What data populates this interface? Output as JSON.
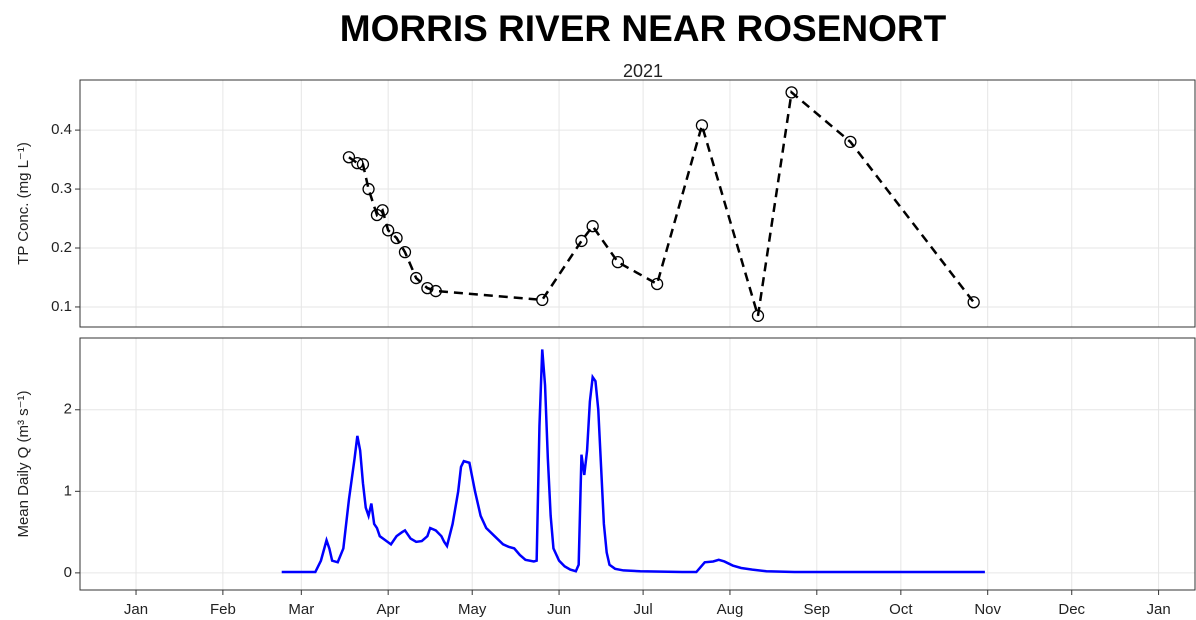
{
  "chart_data": [
    {
      "type": "line",
      "title": "MORRIS RIVER NEAR ROSENORT",
      "subtitle": "2021",
      "y_label": "TP Conc. (mg L⁻¹)",
      "color": "#000000",
      "line_style": "dashed",
      "marker": "open-circle",
      "x": [
        76,
        79,
        81,
        83,
        86,
        88,
        90,
        93,
        96,
        100,
        104,
        107,
        145,
        159,
        163,
        172,
        186,
        202,
        222,
        234,
        255,
        299
      ],
      "values": [
        0.354,
        0.344,
        0.342,
        0.3,
        0.256,
        0.264,
        0.23,
        0.217,
        0.193,
        0.149,
        0.132,
        0.127,
        0.112,
        0.212,
        0.237,
        0.176,
        0.139,
        0.408,
        0.085,
        0.464,
        0.38,
        0.108
      ],
      "ylim": [
        0.066,
        0.485
      ],
      "yticks": [
        0.1,
        0.2,
        0.3,
        0.4
      ],
      "grid": true
    },
    {
      "type": "line",
      "y_label": "Mean Daily Q (m³ s⁻¹)",
      "color": "#0000ff",
      "line_style": "solid",
      "x": [
        52,
        64,
        66,
        68,
        69,
        70,
        72,
        74,
        76,
        78,
        79,
        80,
        81,
        82,
        83,
        84,
        85,
        86,
        87,
        89,
        91,
        93,
        95,
        96,
        98,
        100,
        102,
        104,
        105,
        107,
        109,
        110,
        111,
        113,
        115,
        116,
        117,
        119,
        121,
        123,
        125,
        128,
        131,
        133,
        135,
        137,
        139,
        142,
        143,
        144,
        145,
        146,
        147,
        148,
        149,
        151,
        153,
        155,
        157,
        158,
        159,
        160,
        161,
        162,
        163,
        164,
        165,
        166,
        167,
        168,
        169,
        171,
        174,
        180,
        195,
        200,
        201,
        203,
        206,
        208,
        210,
        213,
        216,
        220,
        225,
        235,
        303
      ],
      "values": [
        0.01,
        0.01,
        0.15,
        0.4,
        0.3,
        0.15,
        0.13,
        0.3,
        0.9,
        1.4,
        1.68,
        1.5,
        1.1,
        0.8,
        0.7,
        0.85,
        0.6,
        0.55,
        0.45,
        0.4,
        0.35,
        0.45,
        0.5,
        0.52,
        0.42,
        0.38,
        0.39,
        0.45,
        0.55,
        0.52,
        0.45,
        0.38,
        0.33,
        0.6,
        1.0,
        1.3,
        1.37,
        1.35,
        1.0,
        0.7,
        0.55,
        0.45,
        0.35,
        0.32,
        0.3,
        0.22,
        0.16,
        0.14,
        0.15,
        1.8,
        2.74,
        2.3,
        1.4,
        0.7,
        0.3,
        0.15,
        0.08,
        0.04,
        0.02,
        0.1,
        1.45,
        1.2,
        1.5,
        2.1,
        2.4,
        2.35,
        2.0,
        1.3,
        0.6,
        0.25,
        0.1,
        0.05,
        0.03,
        0.02,
        0.01,
        0.01,
        0.05,
        0.13,
        0.14,
        0.16,
        0.14,
        0.09,
        0.06,
        0.04,
        0.02,
        0.01,
        0.01
      ],
      "ylim": [
        -0.21,
        2.88
      ],
      "yticks": [
        0,
        1,
        2
      ],
      "grid": true,
      "xlim": [
        -20,
        378
      ],
      "xticks": [
        {
          "value": 0,
          "label": "Jan"
        },
        {
          "value": 31,
          "label": "Feb"
        },
        {
          "value": 59,
          "label": "Mar"
        },
        {
          "value": 90,
          "label": "Apr"
        },
        {
          "value": 120,
          "label": "May"
        },
        {
          "value": 151,
          "label": "Jun"
        },
        {
          "value": 181,
          "label": "Jul"
        },
        {
          "value": 212,
          "label": "Aug"
        },
        {
          "value": 243,
          "label": "Sep"
        },
        {
          "value": 273,
          "label": "Oct"
        },
        {
          "value": 304,
          "label": "Nov"
        },
        {
          "value": 334,
          "label": "Dec"
        },
        {
          "value": 365,
          "label": "Jan"
        }
      ]
    }
  ]
}
